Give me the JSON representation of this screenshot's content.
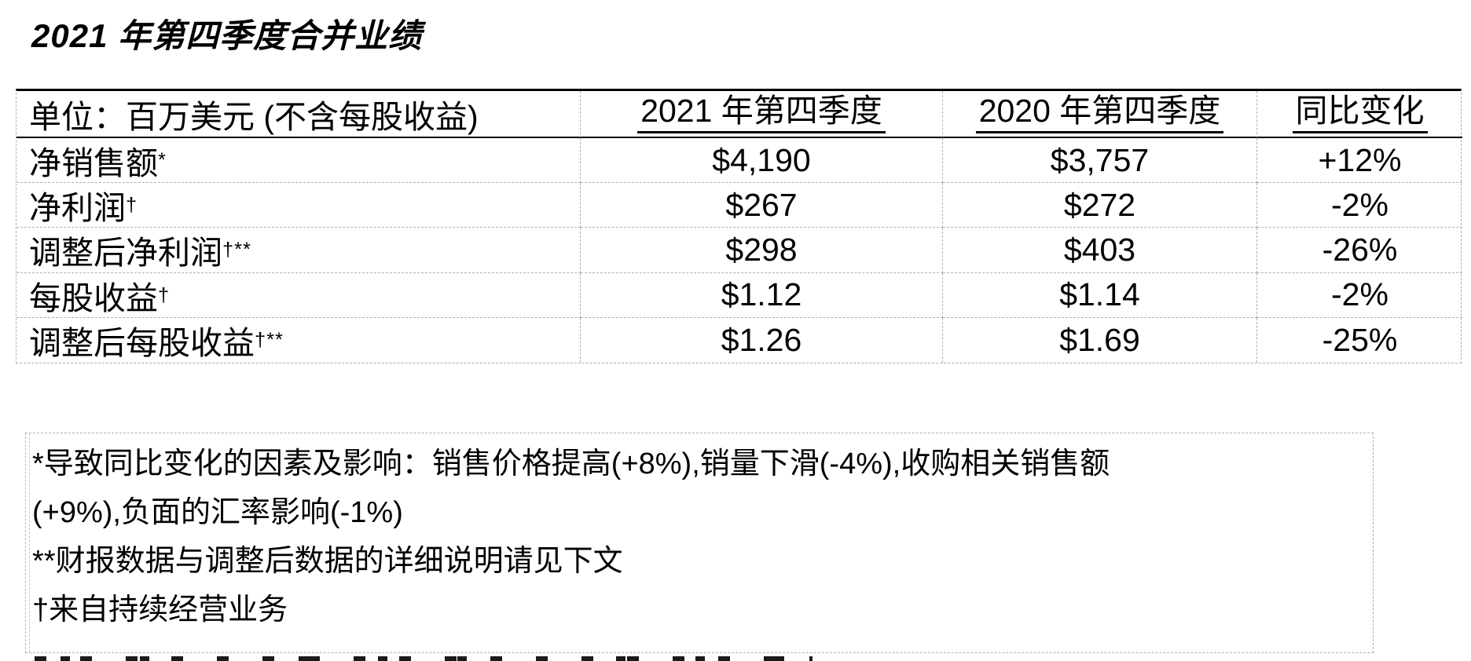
{
  "page": {
    "title": "2021 年第四季度合并业绩"
  },
  "table": {
    "header": {
      "unit_label": "单位：百万美元 (不含每股收益)",
      "col_2021": "2021 年第四季度",
      "col_2020": "2020 年第四季度",
      "col_change": "同比变化"
    },
    "rows": [
      {
        "label": "净销售额",
        "sup": "*",
        "q4_2021": "$4,190",
        "q4_2020": "$3,757",
        "change": "+12%"
      },
      {
        "label": "净利润",
        "sup": "†",
        "q4_2021": "$267",
        "q4_2020": "$272",
        "change": "-2%"
      },
      {
        "label": "调整后净利润",
        "sup": "†**",
        "q4_2021": "$298",
        "q4_2020": "$403",
        "change": "-26%"
      },
      {
        "label": "每股收益",
        "sup": "†",
        "q4_2021": "$1.12",
        "q4_2020": "$1.14",
        "change": "-2%"
      },
      {
        "label": "调整后每股收益",
        "sup": "†**",
        "q4_2021": "$1.26",
        "q4_2020": "$1.69",
        "change": "-25%"
      }
    ]
  },
  "footnotes": {
    "lines": [
      "*导致同比变化的因素及影响：销售价格提高(+8%),销量下滑(-4%),收购相关销售额",
      "(+9%),负面的汇率影响(-1%)",
      "**财报数据与调整后数据的详细说明请见下文",
      "†来自持续经营业务"
    ]
  },
  "colors": {
    "text": "#000000",
    "grid_dashed": "#b0b0b0",
    "solid_rule": "#000000"
  }
}
